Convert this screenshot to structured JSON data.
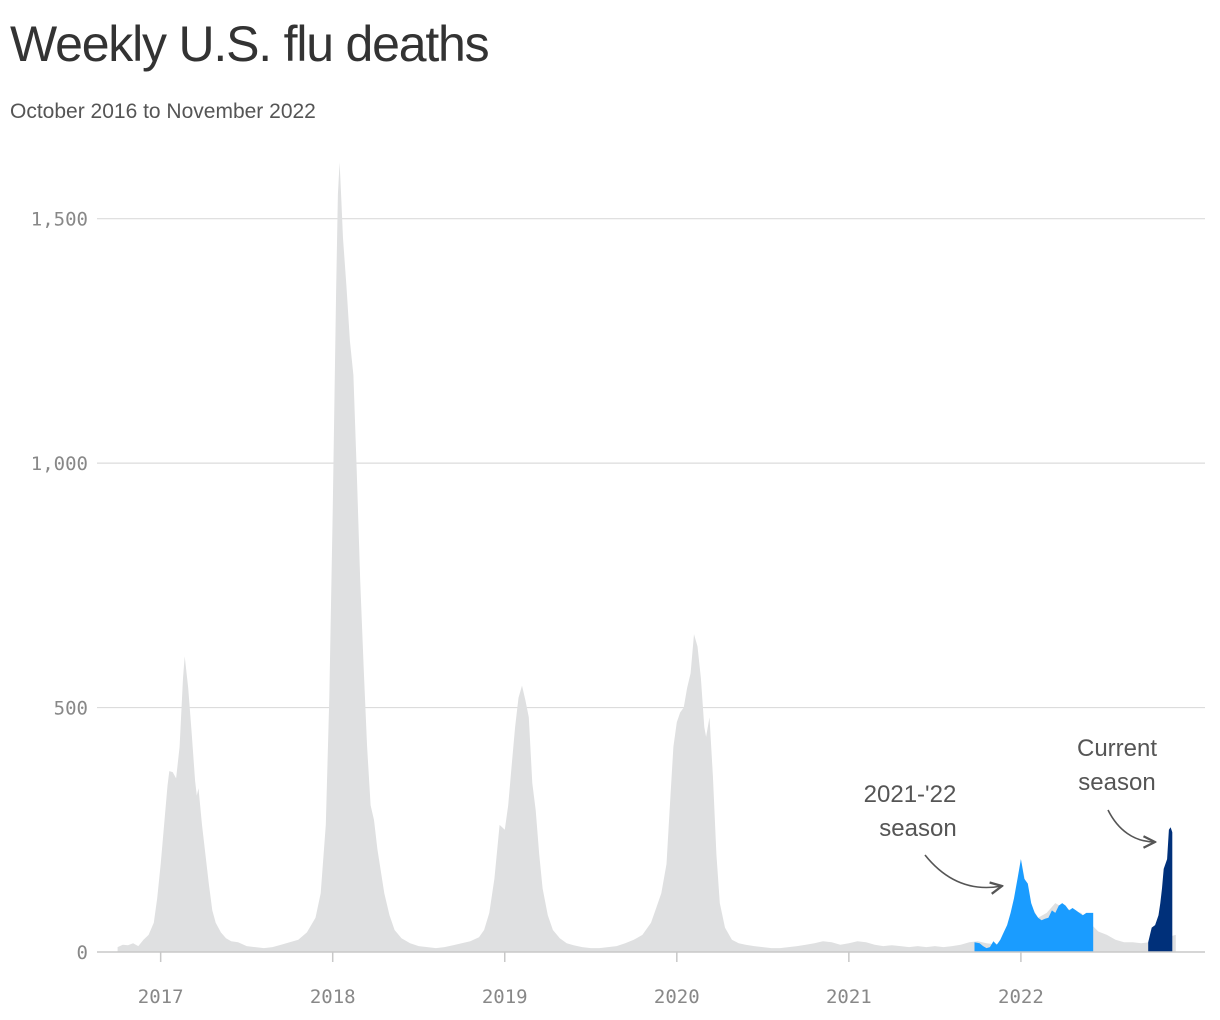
{
  "chart_data": {
    "type": "area",
    "title": "Weekly U.S. flu deaths",
    "subtitle": "October 2016 to November 2022",
    "xlabel": "",
    "ylabel": "",
    "ylim": [
      0,
      1620
    ],
    "y_ticks": [
      {
        "value": 0,
        "label": "0"
      },
      {
        "value": 500,
        "label": "500"
      },
      {
        "value": 1000,
        "label": "1,000"
      },
      {
        "value": 1500,
        "label": "1,500"
      }
    ],
    "x_ticks": [
      {
        "value": 2017,
        "label": "2017"
      },
      {
        "value": 2018,
        "label": "2018"
      },
      {
        "value": 2019,
        "label": "2019"
      },
      {
        "value": 2020,
        "label": "2020"
      },
      {
        "value": 2021,
        "label": "2021"
      },
      {
        "value": 2022,
        "label": "2022"
      }
    ],
    "xlim": [
      2016.63,
      2023.07
    ],
    "grid": "horizontal",
    "colors": {
      "background_seasons": "#dfe0e1",
      "season_2021_22": "#1a9cff",
      "current_season": "#00307a",
      "grid": "#dcdcdc",
      "axis": "#c8c8c8"
    },
    "series": [
      {
        "name": "",
        "color": "#dfe0e1",
        "points": [
          [
            2016.75,
            10
          ],
          [
            2016.78,
            15
          ],
          [
            2016.81,
            14
          ],
          [
            2016.84,
            18
          ],
          [
            2016.87,
            12
          ],
          [
            2016.9,
            25
          ],
          [
            2016.93,
            35
          ],
          [
            2016.96,
            60
          ],
          [
            2016.98,
            110
          ],
          [
            2017.0,
            180
          ],
          [
            2017.02,
            260
          ],
          [
            2017.04,
            340
          ],
          [
            2017.05,
            370
          ],
          [
            2017.07,
            368
          ],
          [
            2017.09,
            355
          ],
          [
            2017.11,
            420
          ],
          [
            2017.13,
            560
          ],
          [
            2017.14,
            605
          ],
          [
            2017.16,
            540
          ],
          [
            2017.18,
            450
          ],
          [
            2017.2,
            350
          ],
          [
            2017.21,
            320
          ],
          [
            2017.22,
            335
          ],
          [
            2017.24,
            260
          ],
          [
            2017.26,
            200
          ],
          [
            2017.28,
            140
          ],
          [
            2017.3,
            85
          ],
          [
            2017.32,
            60
          ],
          [
            2017.35,
            40
          ],
          [
            2017.38,
            28
          ],
          [
            2017.41,
            22
          ],
          [
            2017.45,
            20
          ],
          [
            2017.5,
            12
          ],
          [
            2017.55,
            10
          ],
          [
            2017.6,
            8
          ],
          [
            2017.65,
            10
          ],
          [
            2017.7,
            15
          ],
          [
            2017.75,
            20
          ],
          [
            2017.8,
            25
          ],
          [
            2017.85,
            40
          ],
          [
            2017.9,
            70
          ],
          [
            2017.93,
            120
          ],
          [
            2017.96,
            260
          ],
          [
            2017.98,
            520
          ],
          [
            2018.0,
            900
          ],
          [
            2018.02,
            1350
          ],
          [
            2018.03,
            1550
          ],
          [
            2018.04,
            1615
          ],
          [
            2018.05,
            1540
          ],
          [
            2018.06,
            1460
          ],
          [
            2018.08,
            1360
          ],
          [
            2018.1,
            1250
          ],
          [
            2018.12,
            1180
          ],
          [
            2018.14,
            980
          ],
          [
            2018.16,
            760
          ],
          [
            2018.18,
            580
          ],
          [
            2018.2,
            420
          ],
          [
            2018.22,
            300
          ],
          [
            2018.24,
            270
          ],
          [
            2018.26,
            210
          ],
          [
            2018.3,
            120
          ],
          [
            2018.33,
            75
          ],
          [
            2018.36,
            45
          ],
          [
            2018.4,
            28
          ],
          [
            2018.45,
            18
          ],
          [
            2018.5,
            12
          ],
          [
            2018.55,
            10
          ],
          [
            2018.6,
            8
          ],
          [
            2018.65,
            10
          ],
          [
            2018.7,
            14
          ],
          [
            2018.75,
            18
          ],
          [
            2018.8,
            22
          ],
          [
            2018.85,
            30
          ],
          [
            2018.88,
            45
          ],
          [
            2018.91,
            80
          ],
          [
            2018.94,
            150
          ],
          [
            2018.97,
            260
          ],
          [
            2019.0,
            250
          ],
          [
            2019.02,
            300
          ],
          [
            2019.04,
            380
          ],
          [
            2019.06,
            460
          ],
          [
            2019.08,
            520
          ],
          [
            2019.1,
            545
          ],
          [
            2019.12,
            515
          ],
          [
            2019.14,
            480
          ],
          [
            2019.16,
            345
          ],
          [
            2019.18,
            290
          ],
          [
            2019.2,
            200
          ],
          [
            2019.22,
            130
          ],
          [
            2019.25,
            75
          ],
          [
            2019.28,
            45
          ],
          [
            2019.32,
            28
          ],
          [
            2019.36,
            18
          ],
          [
            2019.4,
            14
          ],
          [
            2019.45,
            10
          ],
          [
            2019.5,
            8
          ],
          [
            2019.55,
            8
          ],
          [
            2019.6,
            10
          ],
          [
            2019.65,
            12
          ],
          [
            2019.7,
            18
          ],
          [
            2019.75,
            25
          ],
          [
            2019.8,
            35
          ],
          [
            2019.85,
            60
          ],
          [
            2019.88,
            90
          ],
          [
            2019.91,
            120
          ],
          [
            2019.94,
            180
          ],
          [
            2019.96,
            300
          ],
          [
            2019.98,
            420
          ],
          [
            2020.0,
            470
          ],
          [
            2020.02,
            490
          ],
          [
            2020.04,
            500
          ],
          [
            2020.06,
            540
          ],
          [
            2020.08,
            570
          ],
          [
            2020.1,
            650
          ],
          [
            2020.12,
            625
          ],
          [
            2020.14,
            560
          ],
          [
            2020.16,
            460
          ],
          [
            2020.17,
            440
          ],
          [
            2020.19,
            480
          ],
          [
            2020.21,
            360
          ],
          [
            2020.23,
            200
          ],
          [
            2020.25,
            100
          ],
          [
            2020.28,
            50
          ],
          [
            2020.32,
            25
          ],
          [
            2020.36,
            18
          ],
          [
            2020.4,
            15
          ],
          [
            2020.45,
            12
          ],
          [
            2020.5,
            10
          ],
          [
            2020.55,
            8
          ],
          [
            2020.6,
            8
          ],
          [
            2020.65,
            10
          ],
          [
            2020.7,
            12
          ],
          [
            2020.75,
            15
          ],
          [
            2020.8,
            18
          ],
          [
            2020.85,
            22
          ],
          [
            2020.9,
            20
          ],
          [
            2020.95,
            15
          ],
          [
            2021.0,
            18
          ],
          [
            2021.05,
            22
          ],
          [
            2021.1,
            20
          ],
          [
            2021.15,
            15
          ],
          [
            2021.2,
            12
          ],
          [
            2021.25,
            14
          ],
          [
            2021.3,
            12
          ],
          [
            2021.35,
            10
          ],
          [
            2021.4,
            12
          ],
          [
            2021.45,
            10
          ],
          [
            2021.5,
            12
          ],
          [
            2021.55,
            10
          ],
          [
            2021.6,
            12
          ],
          [
            2021.65,
            15
          ],
          [
            2021.7,
            20
          ],
          [
            2021.75,
            22
          ],
          [
            2021.8,
            18
          ],
          [
            2021.85,
            16
          ],
          [
            2021.9,
            20
          ],
          [
            2021.95,
            40
          ],
          [
            2022.0,
            190
          ],
          [
            2022.05,
            100
          ],
          [
            2022.1,
            70
          ],
          [
            2022.15,
            80
          ],
          [
            2022.2,
            100
          ],
          [
            2022.25,
            90
          ],
          [
            2022.3,
            85
          ],
          [
            2022.35,
            80
          ],
          [
            2022.4,
            60
          ],
          [
            2022.45,
            42
          ],
          [
            2022.5,
            35
          ],
          [
            2022.55,
            25
          ],
          [
            2022.6,
            20
          ],
          [
            2022.65,
            20
          ],
          [
            2022.7,
            18
          ],
          [
            2022.75,
            20
          ],
          [
            2022.8,
            25
          ],
          [
            2022.85,
            30
          ],
          [
            2022.9,
            35
          ]
        ]
      },
      {
        "name": "2021-'22 season",
        "color": "#1a9cff",
        "points": [
          [
            2021.73,
            20
          ],
          [
            2021.76,
            18
          ],
          [
            2021.78,
            12
          ],
          [
            2021.8,
            8
          ],
          [
            2021.82,
            10
          ],
          [
            2021.84,
            22
          ],
          [
            2021.86,
            15
          ],
          [
            2021.88,
            25
          ],
          [
            2021.9,
            40
          ],
          [
            2021.92,
            55
          ],
          [
            2021.94,
            80
          ],
          [
            2021.96,
            110
          ],
          [
            2021.98,
            150
          ],
          [
            2022.0,
            190
          ],
          [
            2022.02,
            150
          ],
          [
            2022.04,
            140
          ],
          [
            2022.06,
            100
          ],
          [
            2022.08,
            80
          ],
          [
            2022.1,
            70
          ],
          [
            2022.12,
            65
          ],
          [
            2022.14,
            68
          ],
          [
            2022.16,
            70
          ],
          [
            2022.18,
            85
          ],
          [
            2022.2,
            80
          ],
          [
            2022.22,
            95
          ],
          [
            2022.24,
            100
          ],
          [
            2022.26,
            95
          ],
          [
            2022.28,
            85
          ],
          [
            2022.3,
            90
          ],
          [
            2022.32,
            85
          ],
          [
            2022.34,
            80
          ],
          [
            2022.36,
            75
          ],
          [
            2022.38,
            80
          ],
          [
            2022.42,
            80
          ]
        ]
      },
      {
        "name": "Current season",
        "color": "#00307a",
        "points": [
          [
            2022.74,
            20
          ],
          [
            2022.76,
            50
          ],
          [
            2022.78,
            55
          ],
          [
            2022.8,
            75
          ],
          [
            2022.81,
            100
          ],
          [
            2022.82,
            130
          ],
          [
            2022.83,
            170
          ],
          [
            2022.84,
            180
          ],
          [
            2022.85,
            190
          ],
          [
            2022.86,
            250
          ],
          [
            2022.87,
            255
          ],
          [
            2022.88,
            245
          ]
        ]
      }
    ],
    "annotations": [
      {
        "lines": [
          "2021-'22",
          "season"
        ]
      },
      {
        "lines": [
          "Current",
          "season"
        ]
      }
    ]
  }
}
